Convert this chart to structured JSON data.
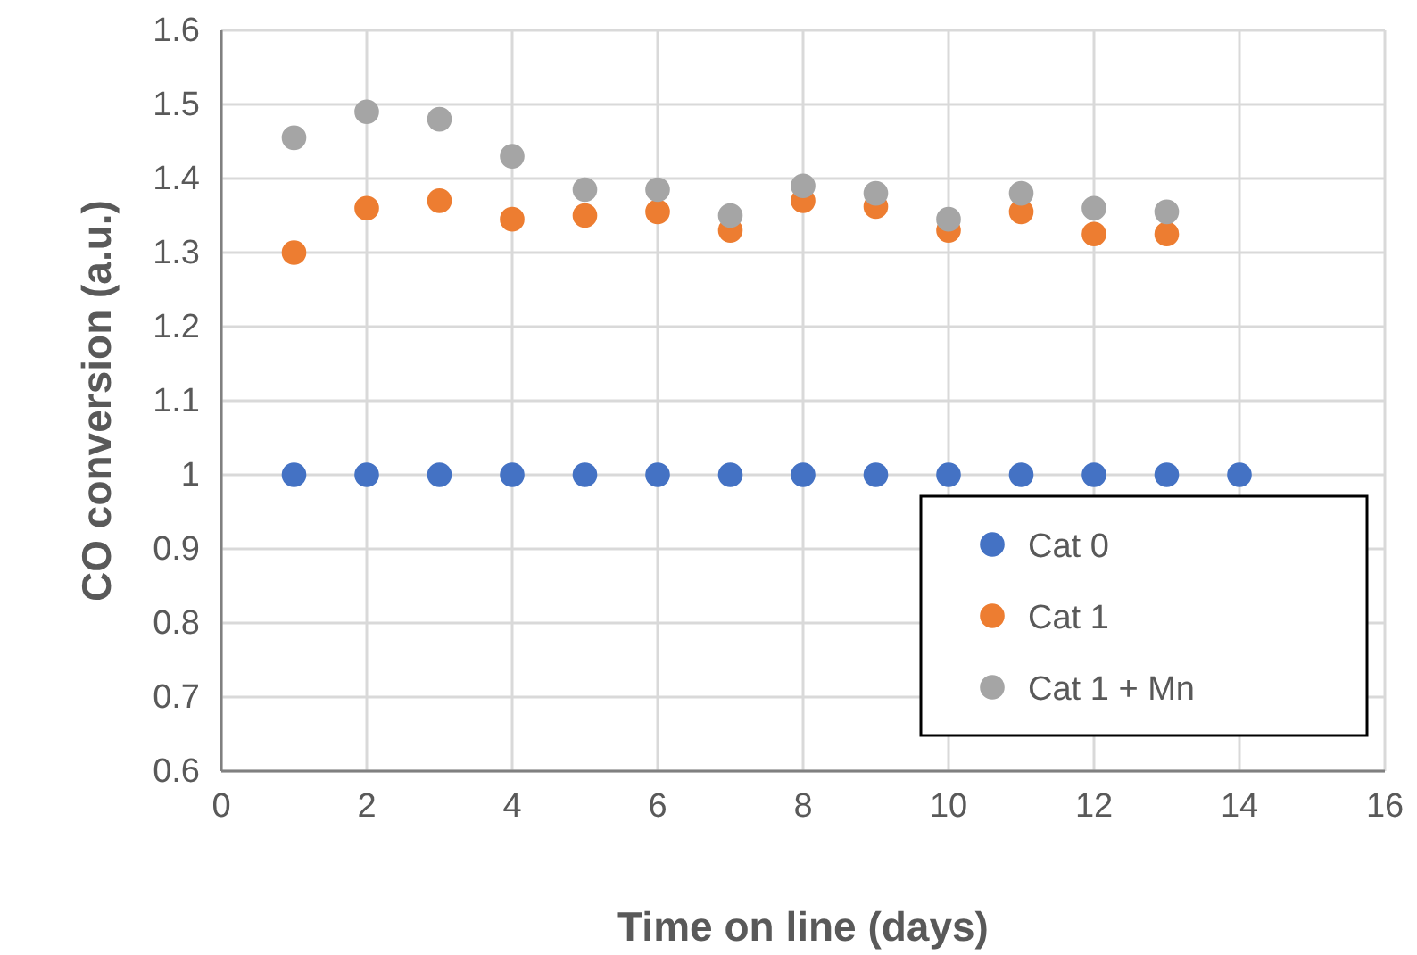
{
  "chart_data": {
    "type": "scatter",
    "xlabel": "Time on line (days)",
    "ylabel": "CO conversion (a.u.)",
    "xlim": [
      0,
      16
    ],
    "xticks": [
      0,
      2,
      4,
      6,
      8,
      10,
      12,
      14,
      16
    ],
    "ylim": [
      0.6,
      1.6
    ],
    "yticks": [
      {
        "value": 0.6,
        "label": "0.6"
      },
      {
        "value": 0.7,
        "label": "0.7"
      },
      {
        "value": 0.8,
        "label": "0.8"
      },
      {
        "value": 0.9,
        "label": "0.9"
      },
      1,
      {
        "value": 1.1,
        "label": "1.1"
      },
      {
        "value": 1.2,
        "label": "1.2"
      },
      {
        "value": 1.3,
        "label": "1.3"
      },
      {
        "value": 1.4,
        "label": "1.4"
      },
      {
        "value": 1.5,
        "label": "1.5"
      },
      {
        "value": 1.6,
        "label": "1.6"
      }
    ],
    "grid": true,
    "legend": "bottom right",
    "marker": "circle",
    "series": [
      {
        "name": "Cat 0",
        "color": "#4472c4",
        "x": [
          1,
          2,
          3,
          4,
          5,
          6,
          7,
          8,
          9,
          10,
          11,
          12,
          13,
          14
        ],
        "values": [
          1,
          1,
          1,
          1,
          1,
          1,
          1,
          1,
          1,
          1,
          1,
          1,
          1,
          1
        ]
      },
      {
        "name": "Cat 1",
        "color": "#ed7d31",
        "x": [
          1,
          2,
          3,
          4,
          5,
          6,
          7,
          8,
          9,
          10,
          11,
          12,
          13
        ],
        "values": [
          1.3,
          1.36,
          1.37,
          1.345,
          1.35,
          1.355,
          1.33,
          1.37,
          1.362,
          1.33,
          1.355,
          1.325,
          1.325
        ]
      },
      {
        "name": "Cat 1 + Mn",
        "color": "#a5a5a5",
        "x": [
          1,
          2,
          3,
          4,
          5,
          6,
          7,
          8,
          9,
          10,
          11,
          12,
          13
        ],
        "values": [
          1.455,
          1.49,
          1.48,
          1.43,
          1.385,
          1.385,
          1.35,
          1.39,
          1.38,
          1.345,
          1.38,
          1.36,
          1.355
        ]
      }
    ]
  }
}
